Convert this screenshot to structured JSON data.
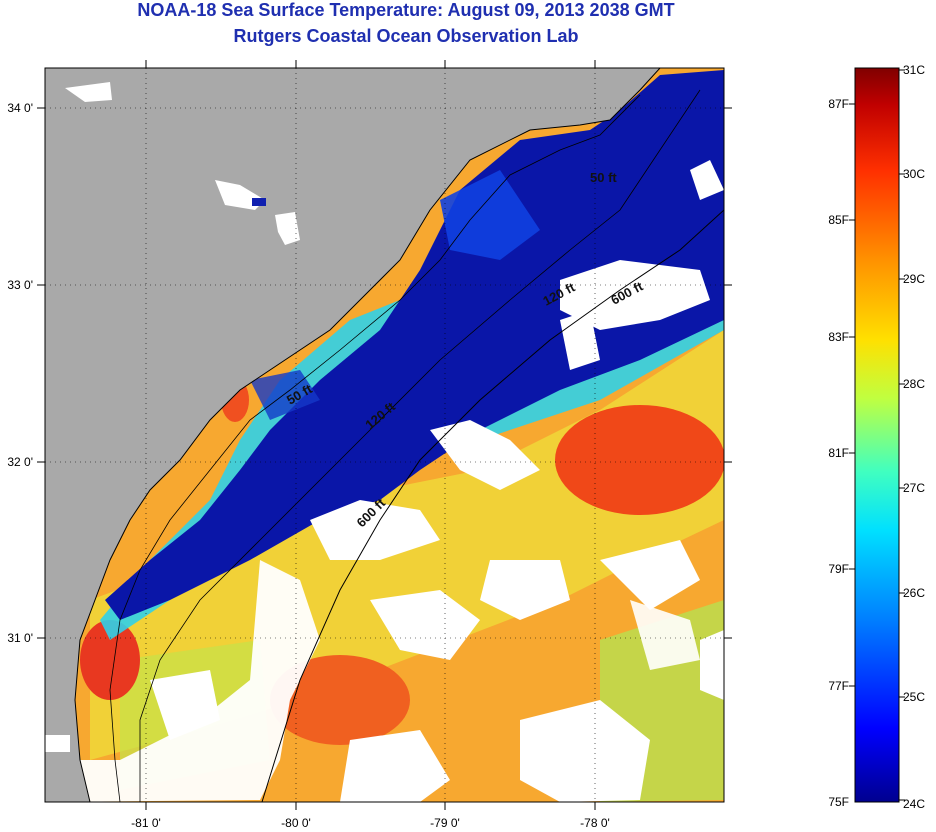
{
  "header": {
    "title": "NOAA-18 Sea Surface Temperature:  August 09, 2013 2038 GMT",
    "subtitle": "Rutgers Coastal Ocean Observation Lab"
  },
  "map": {
    "lon_ticks": [
      "-81 0'",
      "-80 0'",
      "-79 0'",
      "-78 0'"
    ],
    "lat_ticks": [
      "34 0'",
      "33 0'",
      "32 0'",
      "31 0'"
    ],
    "contours": [
      "50 ft",
      "120 ft",
      "600 ft",
      "50 ft",
      "120 ft",
      "600 ft"
    ]
  },
  "colorbar": {
    "fahrenheit": [
      "87F",
      "85F",
      "83F",
      "81F",
      "79F",
      "77F",
      "75F"
    ],
    "celsius": [
      "31C",
      "30C",
      "29C",
      "28C",
      "27C",
      "26C",
      "25C",
      "24C"
    ],
    "colors": [
      "#00008f",
      "#0000ff",
      "#0080ff",
      "#00e0ff",
      "#40ffc0",
      "#c0ff40",
      "#ffe000",
      "#ff9000",
      "#ff3000",
      "#c00000",
      "#800000"
    ]
  },
  "colors": {
    "land": "#a9a9a9",
    "cloud": "#ffffff",
    "title": "#1f2fb0"
  }
}
